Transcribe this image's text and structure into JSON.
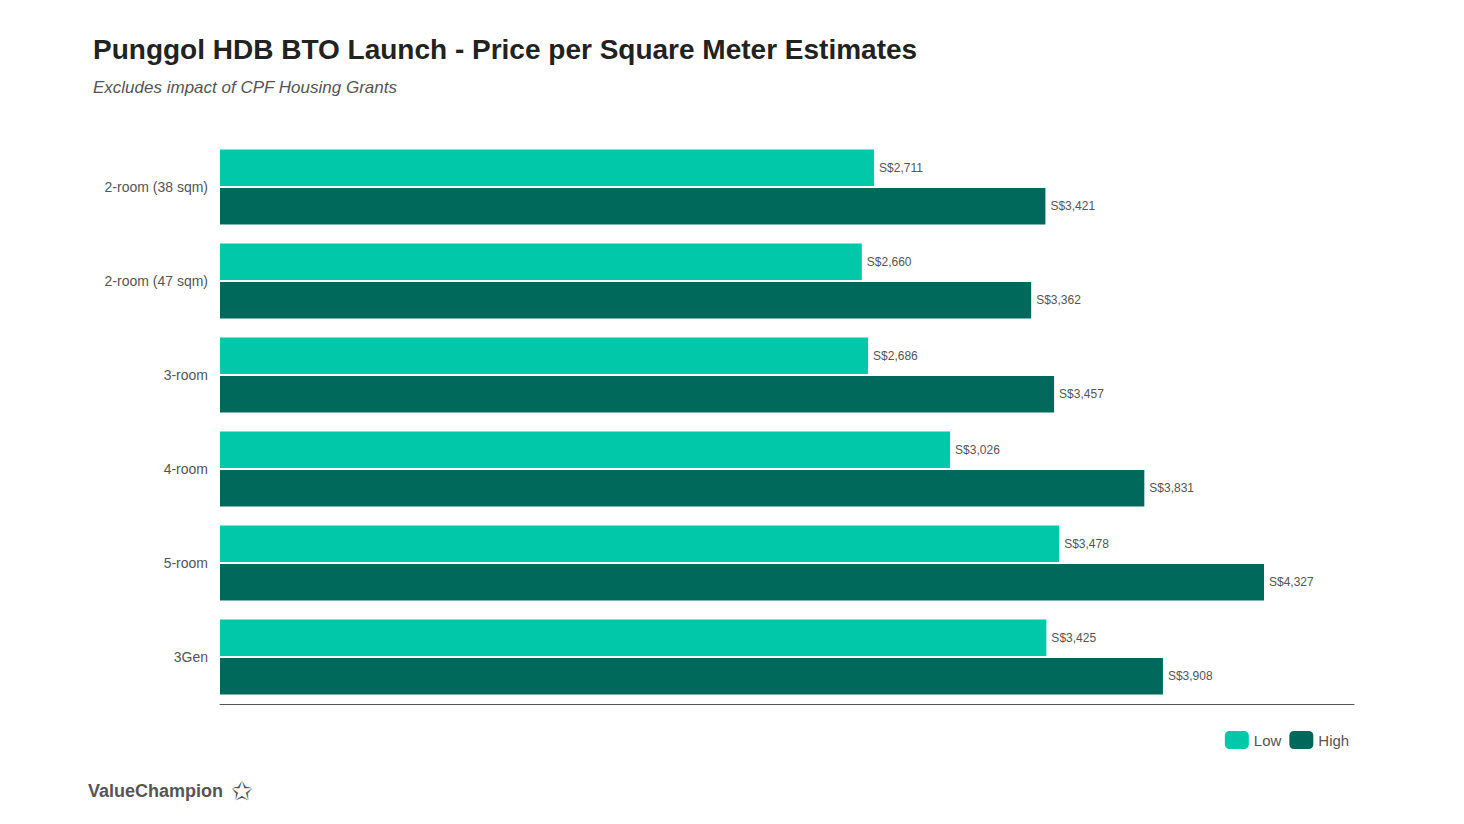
{
  "chart_data": {
    "type": "bar",
    "orientation": "horizontal",
    "title": "Punggol HDB BTO Launch - Price per Square Meter Estimates",
    "subtitle": "Excludes impact of CPF Housing Grants",
    "categories": [
      "2-room (38 sqm)",
      "2-room (47 sqm)",
      "3-room",
      "4-room",
      "5-room",
      "3Gen"
    ],
    "series": [
      {
        "name": "Low",
        "color": "#00C8A8",
        "values": [
          2711,
          2660,
          2686,
          3026,
          3478,
          3425
        ],
        "value_labels": [
          "S$2,711",
          "S$2,660",
          "S$2,686",
          "S$3,026",
          "S$3,478",
          "S$3,425"
        ]
      },
      {
        "name": "High",
        "color": "#00695C",
        "values": [
          3421,
          3362,
          3457,
          3831,
          4327,
          3908
        ],
        "value_labels": [
          "S$3,421",
          "S$3,362",
          "S$3,457",
          "S$3,831",
          "S$4,327",
          "S$3,908"
        ]
      }
    ],
    "xlim": [
      0,
      4700
    ],
    "tick_labels": "y",
    "grid": false,
    "legend": "lower right",
    "data_labels": true,
    "annotations": [
      "ValueChampion",
      "✩"
    ]
  }
}
